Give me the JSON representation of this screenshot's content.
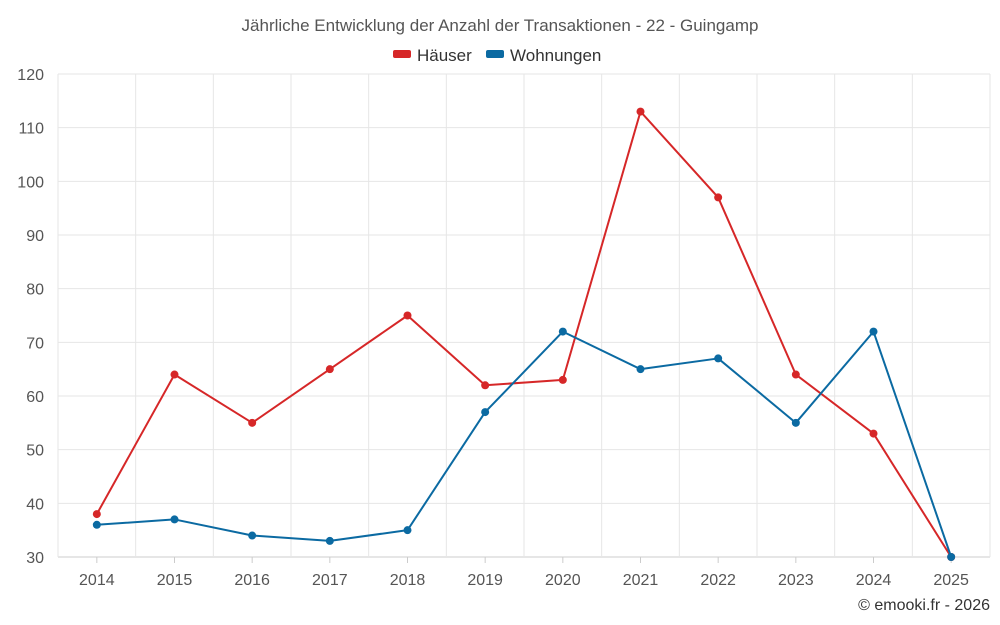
{
  "chart_data": {
    "type": "line",
    "title": "Jährliche Entwicklung der Anzahl der Transaktionen - 22 - Guingamp",
    "categories": [
      "2014",
      "2015",
      "2016",
      "2017",
      "2018",
      "2019",
      "2020",
      "2021",
      "2022",
      "2023",
      "2024",
      "2025"
    ],
    "series": [
      {
        "name": "Häuser",
        "color": "#d62728",
        "values": [
          38,
          64,
          55,
          65,
          75,
          62,
          63,
          113,
          97,
          64,
          53,
          30
        ]
      },
      {
        "name": "Wohnungen",
        "color": "#0b6aa2",
        "values": [
          36,
          37,
          34,
          33,
          35,
          57,
          72,
          65,
          67,
          55,
          72,
          30
        ]
      }
    ],
    "ylim": [
      30,
      120
    ],
    "yticks": [
      30,
      40,
      50,
      60,
      70,
      80,
      90,
      100,
      110,
      120
    ],
    "grid": true,
    "legend_position": "top-center",
    "xlabel": "",
    "ylabel": ""
  },
  "credit": "© emooki.fr - 2026"
}
